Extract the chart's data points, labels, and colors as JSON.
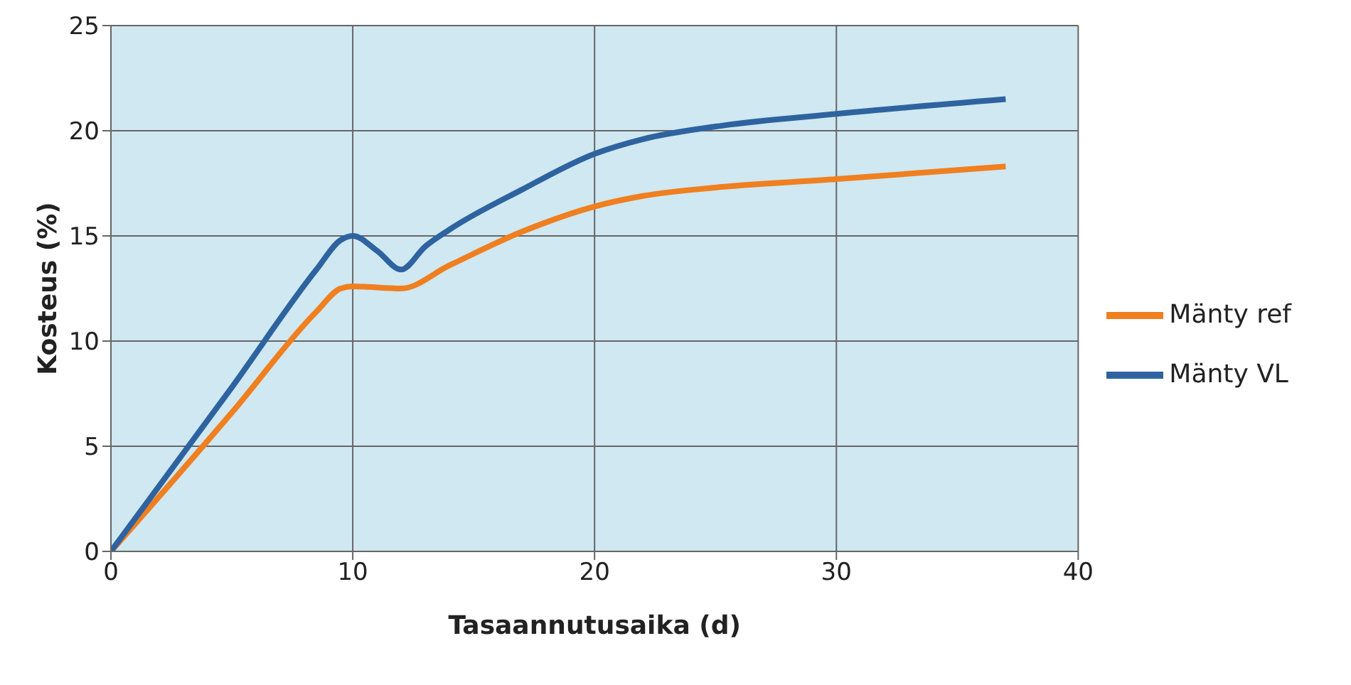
{
  "chart_data": {
    "type": "line",
    "xlabel": "Tasaannutusaika (d)",
    "ylabel": "Kosteus (%)",
    "xlim": [
      0,
      40
    ],
    "xticks": [
      0,
      10,
      20,
      30,
      40
    ],
    "ylim": [
      0,
      25
    ],
    "yticks": [
      0,
      5,
      10,
      15,
      20,
      25
    ],
    "grid": true,
    "legend": "right",
    "marker": "none",
    "line_style": "solid",
    "series": [
      {
        "name": "Mänty ref",
        "color": "#f07f20",
        "x": [
          0,
          5,
          8.5,
          9.5,
          10,
          12,
          14,
          17,
          20,
          22,
          25,
          30,
          37
        ],
        "values": [
          0,
          6.6,
          11.4,
          12.5,
          12.6,
          12.5,
          13.6,
          15.2,
          16.4,
          16.9,
          17.3,
          17.7,
          18.3
        ]
      },
      {
        "name": "Mänty VL",
        "color": "#2e63a0",
        "x": [
          0,
          5,
          8.5,
          9.5,
          10,
          11,
          12,
          13,
          14,
          17,
          20,
          22,
          25,
          30,
          37
        ],
        "values": [
          0,
          7.8,
          13.4,
          14.8,
          15,
          14.3,
          13.4,
          14.5,
          15.3,
          17.2,
          18.9,
          19.6,
          20.2,
          20.8,
          21.5
        ]
      }
    ]
  }
}
